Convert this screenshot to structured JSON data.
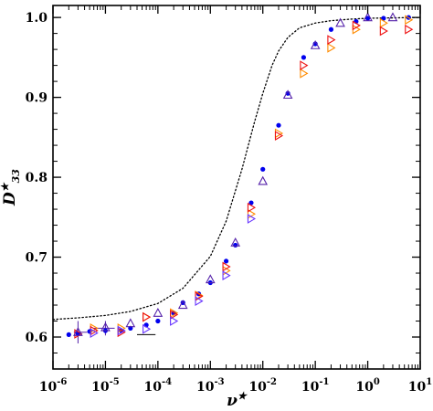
{
  "chart_data": {
    "type": "scatter",
    "xlabel": "ν★",
    "ylabel": "D★33",
    "xscale": "log",
    "xlim": [
      1e-06,
      10
    ],
    "ylim": [
      0.56,
      1.015
    ],
    "xticks": [
      {
        "value": 1e-06,
        "base": "10",
        "exp": "-6"
      },
      {
        "value": 1e-05,
        "base": "10",
        "exp": "-5"
      },
      {
        "value": 0.0001,
        "base": "10",
        "exp": "-4"
      },
      {
        "value": 0.001,
        "base": "10",
        "exp": "-3"
      },
      {
        "value": 0.01,
        "base": "10",
        "exp": "-2"
      },
      {
        "value": 0.1,
        "base": "10",
        "exp": "-1"
      },
      {
        "value": 1,
        "base": "10",
        "exp": "0"
      },
      {
        "value": 10,
        "base": "10",
        "exp": "1"
      }
    ],
    "yticks": [
      {
        "value": 0.6,
        "label": "0.6"
      },
      {
        "value": 0.7,
        "label": "0.7"
      },
      {
        "value": 0.8,
        "label": "0.8"
      },
      {
        "value": 0.9,
        "label": "0.9"
      },
      {
        "value": 1.0,
        "label": "1.0"
      }
    ],
    "grid": false,
    "curve": {
      "style": "dotted",
      "color": "#000000",
      "x": [
        1e-06,
        3e-06,
        1e-05,
        3e-05,
        0.0001,
        0.0003,
        0.001,
        0.002,
        0.004,
        0.007,
        0.01,
        0.015,
        0.02,
        0.03,
        0.05,
        0.1,
        0.2,
        0.5,
        1,
        3,
        10
      ],
      "y": [
        0.622,
        0.624,
        0.627,
        0.632,
        0.642,
        0.661,
        0.701,
        0.745,
        0.81,
        0.87,
        0.905,
        0.94,
        0.958,
        0.975,
        0.987,
        0.993,
        0.996,
        0.998,
        0.999,
        0.9995,
        1.0
      ]
    },
    "series": [
      {
        "marker": "circle",
        "color": "#0000ee",
        "x": [
          2e-06,
          3e-06,
          5e-06,
          1e-05,
          2e-05,
          3e-05,
          6e-05,
          0.0001,
          0.0002,
          0.0003,
          0.0006,
          0.001,
          0.002,
          0.003,
          0.006,
          0.01,
          0.02,
          0.03,
          0.06,
          0.1,
          0.2,
          0.6,
          1,
          2,
          6
        ],
        "y": [
          0.603,
          0.604,
          0.607,
          0.608,
          0.608,
          0.611,
          0.615,
          0.62,
          0.63,
          0.643,
          0.654,
          0.668,
          0.695,
          0.715,
          0.768,
          0.81,
          0.865,
          0.905,
          0.95,
          0.967,
          0.985,
          0.995,
          0.999,
          0.999,
          1.0
        ]
      },
      {
        "marker": "triangle-right",
        "color": "#ff8c00",
        "x": [
          6e-06,
          2e-05,
          6e-05,
          0.0002,
          0.0006,
          0.002,
          0.006,
          0.02,
          0.06,
          0.2,
          0.6,
          2,
          6
        ],
        "y": [
          0.611,
          0.611,
          0.625,
          0.63,
          0.652,
          0.683,
          0.754,
          0.855,
          0.93,
          0.962,
          0.985,
          0.993,
          0.997
        ]
      },
      {
        "marker": "triangle-right",
        "color": "#ee1111",
        "x": [
          3e-06,
          6e-06,
          2e-05,
          6e-05,
          0.0002,
          0.0006,
          0.002,
          0.006,
          0.02,
          0.06,
          0.2,
          0.6,
          2,
          6
        ],
        "y": [
          0.604,
          0.608,
          0.606,
          0.625,
          0.628,
          0.651,
          0.688,
          0.762,
          0.852,
          0.94,
          0.972,
          0.99,
          0.983,
          0.985
        ]
      },
      {
        "marker": "triangle-right",
        "color": "#6633ff",
        "x": [
          6e-06,
          2e-05,
          6e-05,
          0.0002,
          0.0006,
          0.002,
          0.006
        ],
        "y": [
          0.605,
          0.608,
          0.61,
          0.62,
          0.645,
          0.677,
          0.748
        ]
      },
      {
        "marker": "triangle-up",
        "color": "#5522aa",
        "x": [
          3e-06,
          1e-05,
          3e-05,
          0.0001,
          0.0003,
          0.001,
          0.003,
          0.01,
          0.03,
          0.1,
          0.3,
          1,
          3
        ],
        "y": [
          0.606,
          0.612,
          0.617,
          0.63,
          0.64,
          0.672,
          0.718,
          0.795,
          0.903,
          0.965,
          0.993,
          1.0,
          1.0
        ]
      }
    ],
    "error_bars": [
      {
        "x": 3e-06,
        "ylow": 0.592,
        "yhigh": 0.62,
        "xlow": 2.5e-06,
        "xhigh": 4.5e-06,
        "color": "#5522aa"
      },
      {
        "x": 1e-05,
        "ylow": 0.602,
        "yhigh": 0.62,
        "xlow": 6e-06,
        "xhigh": 1.5e-05,
        "color": "#5522aa"
      },
      {
        "x": 6e-05,
        "ylow": 0.603,
        "yhigh": 0.603,
        "xlow": 4e-05,
        "xhigh": 9e-05,
        "color": "#000000"
      }
    ]
  }
}
